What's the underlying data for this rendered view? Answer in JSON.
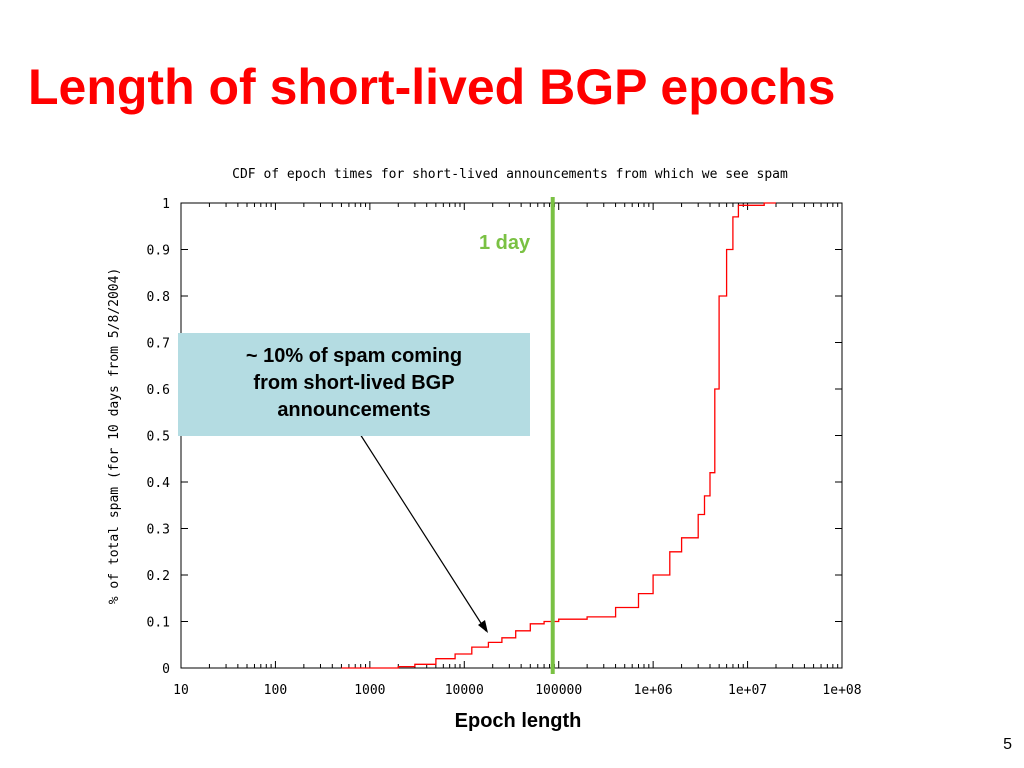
{
  "slide": {
    "title": "Length of short-lived BGP epochs",
    "page_number": "5"
  },
  "callout": {
    "line1": "~ 10% of spam coming",
    "line2": "from short-lived BGP",
    "line3": "announcements",
    "color": "#b4dce2"
  },
  "marker": {
    "label": "1 day",
    "x": 86400,
    "color": "#7ac143"
  },
  "chart_data": {
    "type": "line",
    "title": "CDF of epoch times for short-lived announcements from which we see spam",
    "xlabel": "Epoch length",
    "ylabel": "% of total spam (for 10 days from 5/8/2004)",
    "x_scale": "log",
    "xlim": [
      10,
      100000000
    ],
    "ylim": [
      0,
      1
    ],
    "x_ticks": [
      "10",
      "100",
      "1000",
      "10000",
      "100000",
      "1e+06",
      "1e+07",
      "1e+08"
    ],
    "y_ticks": [
      "0",
      "0.1",
      "0.2",
      "0.3",
      "0.4",
      "0.5",
      "0.6",
      "0.7",
      "0.8",
      "0.9",
      "1"
    ],
    "grid": false,
    "series": [
      {
        "color": "#ff0000",
        "x": [
          500,
          2000,
          3000,
          5000,
          8000,
          12000,
          18000,
          25000,
          35000,
          50000,
          70000,
          100000,
          200000,
          400000,
          700000,
          1000000,
          1500000,
          2000000,
          3000000,
          3500000,
          4000000,
          4500000,
          5000000,
          6000000,
          7000000,
          8000000,
          15000000
        ],
        "y": [
          0.0,
          0.003,
          0.008,
          0.02,
          0.03,
          0.045,
          0.055,
          0.065,
          0.08,
          0.095,
          0.1,
          0.105,
          0.11,
          0.13,
          0.16,
          0.2,
          0.25,
          0.28,
          0.33,
          0.37,
          0.42,
          0.6,
          0.8,
          0.9,
          0.97,
          0.995,
          1.0
        ]
      }
    ]
  }
}
